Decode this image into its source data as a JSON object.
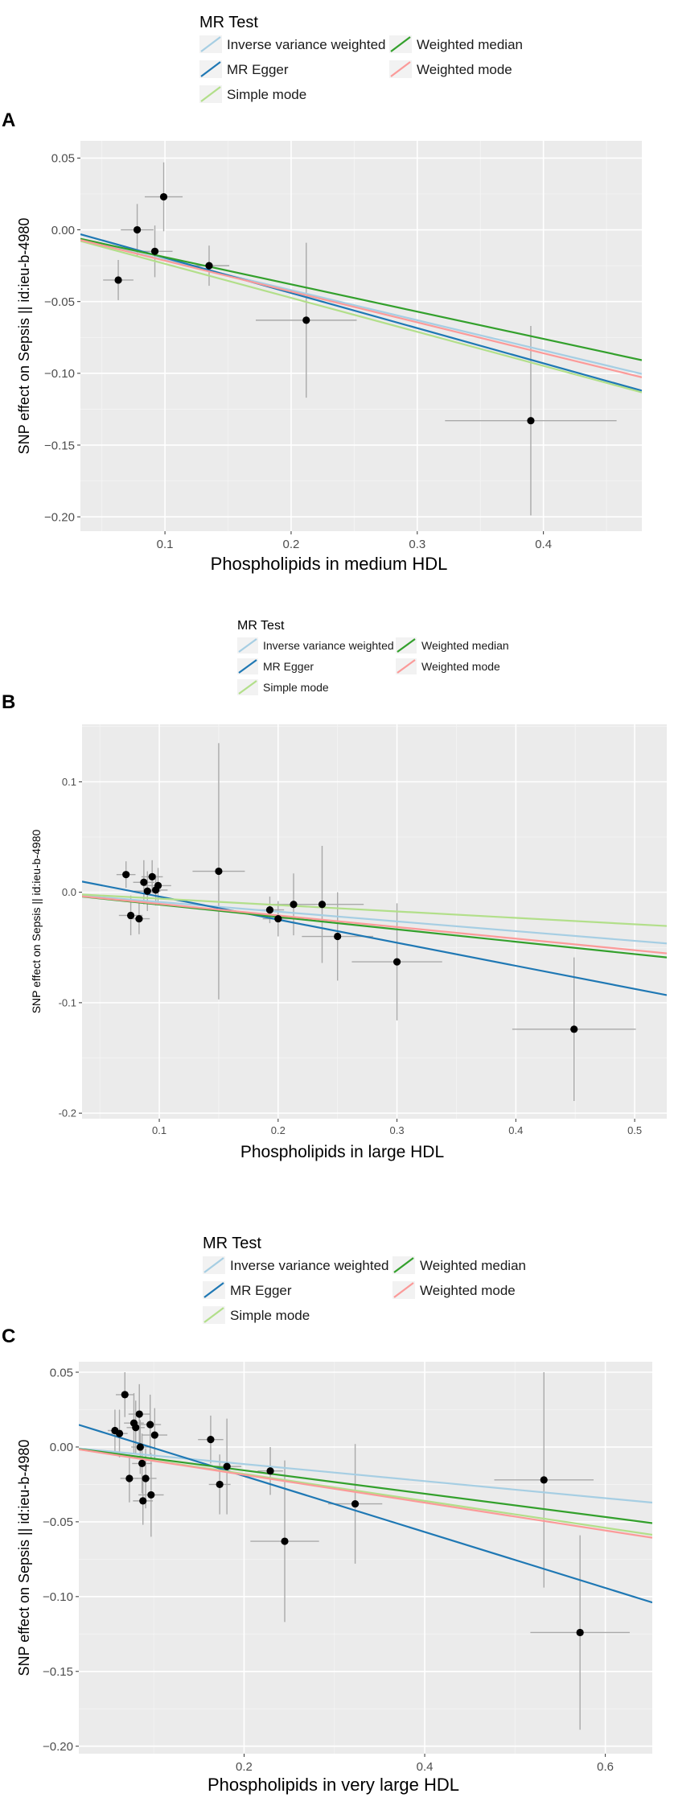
{
  "colors": {
    "panel_bg": "#EBEBEB",
    "grid_major": "#FFFFFF",
    "point": "#000000",
    "error_bar": "#A9A9A9",
    "ivw": "#A6CEE3",
    "egger": "#1F78B4",
    "simple_mode": "#B2DF8A",
    "weighted_median": "#33A02C",
    "weighted_mode": "#FB9A99"
  },
  "chart_data": [
    {
      "type": "scatter",
      "panel_label": "A",
      "legend_title": "MR Test",
      "legend": [
        {
          "key": "ivw",
          "label": "Inverse variance weighted"
        },
        {
          "key": "weighted_median",
          "label": "Weighted median"
        },
        {
          "key": "egger",
          "label": "MR Egger"
        },
        {
          "key": "weighted_mode",
          "label": "Weighted mode"
        },
        {
          "key": "simple_mode",
          "label": "Simple mode"
        }
      ],
      "xlabel": "Phospholipids in medium HDL",
      "ylabel": "SNP effect on Sepsis || id:ieu-b-4980",
      "xlim": [
        0.033,
        0.478
      ],
      "ylim": [
        -0.21,
        0.062
      ],
      "x_ticks": [
        0.1,
        0.2,
        0.3,
        0.4
      ],
      "x_tick_labels": [
        "0.1",
        "0.2",
        "0.3",
        "0.4"
      ],
      "y_ticks": [
        0.05,
        0.0,
        -0.05,
        -0.1,
        -0.15,
        -0.2
      ],
      "y_tick_labels": [
        "0.05",
        "0.00",
        "−0.05",
        "−0.10",
        "−0.15",
        "−0.20"
      ],
      "points": [
        {
          "x": 0.063,
          "y": -0.035,
          "xerr": 0.012,
          "yerr": 0.014
        },
        {
          "x": 0.078,
          "y": 0.0,
          "xerr": 0.013,
          "yerr": 0.018
        },
        {
          "x": 0.092,
          "y": -0.015,
          "xerr": 0.014,
          "yerr": 0.018
        },
        {
          "x": 0.099,
          "y": 0.023,
          "xerr": 0.015,
          "yerr": 0.024
        },
        {
          "x": 0.135,
          "y": -0.025,
          "xerr": 0.016,
          "yerr": 0.014
        },
        {
          "x": 0.212,
          "y": -0.063,
          "xerr": 0.04,
          "yerr": 0.054
        },
        {
          "x": 0.39,
          "y": -0.133,
          "xerr": 0.068,
          "yerr": 0.066
        }
      ],
      "lines": [
        {
          "key": "ivw",
          "slope": -0.21,
          "intercept": 0.0
        },
        {
          "key": "egger",
          "slope": -0.245,
          "intercept": 0.005
        },
        {
          "key": "simple_mode",
          "slope": -0.237,
          "intercept": 0.0
        },
        {
          "key": "weighted_median",
          "slope": -0.19,
          "intercept": 0.0
        },
        {
          "key": "weighted_mode",
          "slope": -0.215,
          "intercept": 0.0
        }
      ]
    },
    {
      "type": "scatter",
      "panel_label": "B",
      "legend_title": "MR Test",
      "legend": [
        {
          "key": "ivw",
          "label": "Inverse variance weighted"
        },
        {
          "key": "weighted_median",
          "label": "Weighted median"
        },
        {
          "key": "egger",
          "label": "MR Egger"
        },
        {
          "key": "weighted_mode",
          "label": "Weighted mode"
        },
        {
          "key": "simple_mode",
          "label": "Simple mode"
        }
      ],
      "xlabel": "Phospholipids in large HDL",
      "ylabel": "SNP effect on Sepsis || id:ieu-b-4980",
      "xlim": [
        0.035,
        0.527
      ],
      "ylim": [
        -0.205,
        0.152
      ],
      "x_ticks": [
        0.1,
        0.2,
        0.3,
        0.4,
        0.5
      ],
      "x_tick_labels": [
        "0.1",
        "0.2",
        "0.3",
        "0.4",
        "0.5"
      ],
      "y_ticks": [
        0.1,
        0.0,
        -0.1,
        -0.2
      ],
      "y_tick_labels": [
        "0.1",
        "0.0",
        "-0.1",
        "-0.2"
      ],
      "points": [
        {
          "x": 0.072,
          "y": 0.016,
          "xerr": 0.008,
          "yerr": 0.012
        },
        {
          "x": 0.076,
          "y": -0.021,
          "xerr": 0.01,
          "yerr": 0.018
        },
        {
          "x": 0.083,
          "y": -0.024,
          "xerr": 0.009,
          "yerr": 0.014
        },
        {
          "x": 0.087,
          "y": 0.009,
          "xerr": 0.009,
          "yerr": 0.02
        },
        {
          "x": 0.09,
          "y": 0.001,
          "xerr": 0.011,
          "yerr": 0.018
        },
        {
          "x": 0.094,
          "y": 0.014,
          "xerr": 0.009,
          "yerr": 0.015
        },
        {
          "x": 0.097,
          "y": 0.002,
          "xerr": 0.01,
          "yerr": 0.014
        },
        {
          "x": 0.099,
          "y": 0.006,
          "xerr": 0.011,
          "yerr": 0.016
        },
        {
          "x": 0.15,
          "y": 0.019,
          "xerr": 0.022,
          "yerr": 0.116
        },
        {
          "x": 0.193,
          "y": -0.016,
          "xerr": 0.012,
          "yerr": 0.012
        },
        {
          "x": 0.2,
          "y": -0.024,
          "xerr": 0.013,
          "yerr": 0.016
        },
        {
          "x": 0.213,
          "y": -0.011,
          "xerr": 0.018,
          "yerr": 0.028
        },
        {
          "x": 0.237,
          "y": -0.011,
          "xerr": 0.035,
          "yerr": 0.053
        },
        {
          "x": 0.25,
          "y": -0.04,
          "xerr": 0.03,
          "yerr": 0.04
        },
        {
          "x": 0.3,
          "y": -0.063,
          "xerr": 0.038,
          "yerr": 0.053
        },
        {
          "x": 0.449,
          "y": -0.124,
          "xerr": 0.052,
          "yerr": 0.065
        }
      ],
      "lines": [
        {
          "key": "ivw",
          "slope": -0.088,
          "intercept": 0.0
        },
        {
          "key": "egger",
          "slope": -0.209,
          "intercept": 0.017
        },
        {
          "key": "simple_mode",
          "slope": -0.058,
          "intercept": 0.0
        },
        {
          "key": "weighted_median",
          "slope": -0.112,
          "intercept": 0.0
        },
        {
          "key": "weighted_mode",
          "slope": -0.105,
          "intercept": 0.0
        }
      ]
    },
    {
      "type": "scatter",
      "panel_label": "C",
      "legend_title": "MR Test",
      "legend": [
        {
          "key": "ivw",
          "label": "Inverse variance weighted"
        },
        {
          "key": "weighted_median",
          "label": "Weighted median"
        },
        {
          "key": "egger",
          "label": "MR Egger"
        },
        {
          "key": "weighted_mode",
          "label": "Weighted mode"
        },
        {
          "key": "simple_mode",
          "label": "Simple mode"
        }
      ],
      "xlabel": "Phospholipids in very large HDL",
      "ylabel": "SNP effect on Sepsis || id:ieu-b-4980",
      "xlim": [
        0.017,
        0.652
      ],
      "ylim": [
        -0.205,
        0.057
      ],
      "x_ticks": [
        0.2,
        0.4,
        0.6
      ],
      "x_tick_labels": [
        "0.2",
        "0.4",
        "0.6"
      ],
      "y_ticks": [
        0.05,
        0.0,
        -0.05,
        -0.1,
        -0.15,
        -0.2
      ],
      "y_tick_labels": [
        "0.05",
        "0.00",
        "−0.05",
        "−0.10",
        "−0.15",
        "−0.20"
      ],
      "points": [
        {
          "x": 0.057,
          "y": 0.011,
          "xerr": 0.008,
          "yerr": 0.014
        },
        {
          "x": 0.062,
          "y": 0.009,
          "xerr": 0.009,
          "yerr": 0.016
        },
        {
          "x": 0.068,
          "y": 0.035,
          "xerr": 0.01,
          "yerr": 0.015
        },
        {
          "x": 0.073,
          "y": -0.021,
          "xerr": 0.01,
          "yerr": 0.016
        },
        {
          "x": 0.078,
          "y": 0.016,
          "xerr": 0.011,
          "yerr": 0.02
        },
        {
          "x": 0.08,
          "y": 0.013,
          "xerr": 0.01,
          "yerr": 0.018
        },
        {
          "x": 0.084,
          "y": 0.022,
          "xerr": 0.012,
          "yerr": 0.02
        },
        {
          "x": 0.085,
          "y": 0.0,
          "xerr": 0.01,
          "yerr": 0.018
        },
        {
          "x": 0.087,
          "y": -0.011,
          "xerr": 0.011,
          "yerr": 0.02
        },
        {
          "x": 0.088,
          "y": -0.036,
          "xerr": 0.011,
          "yerr": 0.016
        },
        {
          "x": 0.091,
          "y": -0.021,
          "xerr": 0.012,
          "yerr": 0.02
        },
        {
          "x": 0.096,
          "y": 0.015,
          "xerr": 0.012,
          "yerr": 0.02
        },
        {
          "x": 0.097,
          "y": -0.032,
          "xerr": 0.014,
          "yerr": 0.028
        },
        {
          "x": 0.101,
          "y": 0.008,
          "xerr": 0.014,
          "yerr": 0.018
        },
        {
          "x": 0.163,
          "y": 0.005,
          "xerr": 0.014,
          "yerr": 0.016
        },
        {
          "x": 0.173,
          "y": -0.025,
          "xerr": 0.012,
          "yerr": 0.02
        },
        {
          "x": 0.181,
          "y": -0.013,
          "xerr": 0.016,
          "yerr": 0.032
        },
        {
          "x": 0.229,
          "y": -0.016,
          "xerr": 0.014,
          "yerr": 0.016
        },
        {
          "x": 0.245,
          "y": -0.063,
          "xerr": 0.038,
          "yerr": 0.054
        },
        {
          "x": 0.323,
          "y": -0.038,
          "xerr": 0.03,
          "yerr": 0.04
        },
        {
          "x": 0.532,
          "y": -0.022,
          "xerr": 0.055,
          "yerr": 0.072
        },
        {
          "x": 0.572,
          "y": -0.124,
          "xerr": 0.055,
          "yerr": 0.065
        }
      ],
      "lines": [
        {
          "key": "ivw",
          "slope": -0.057,
          "intercept": 0.0
        },
        {
          "key": "egger",
          "slope": -0.187,
          "intercept": 0.018
        },
        {
          "key": "simple_mode",
          "slope": -0.09,
          "intercept": 0.0
        },
        {
          "key": "weighted_median",
          "slope": -0.078,
          "intercept": 0.0
        },
        {
          "key": "weighted_mode",
          "slope": -0.093,
          "intercept": 0.0
        }
      ]
    }
  ]
}
